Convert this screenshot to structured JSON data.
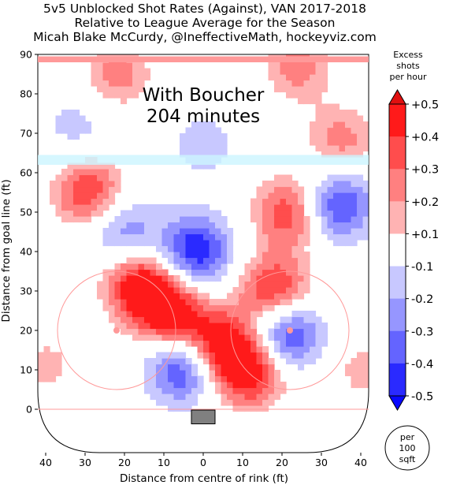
{
  "chart_data": {
    "type": "heatmap",
    "title_lines": [
      "5v5 Unblocked Shot Rates (Against), VAN 2017-2018",
      "Relative to League Average for the Season",
      "Micah Blake McCurdy, @IneffectiveMath, hockeyviz.com"
    ],
    "annotation_lines": [
      "With Boucher",
      "204 minutes"
    ],
    "xlabel": "Distance from centre of rink (ft)",
    "ylabel": "Distance from goal line (ft)",
    "xlim": [
      -42,
      42
    ],
    "ylim": [
      -11,
      90
    ],
    "x_ticks": [
      -40,
      -30,
      -20,
      -10,
      0,
      10,
      20,
      30,
      40
    ],
    "x_tick_labels": [
      "40",
      "30",
      "20",
      "10",
      "0",
      "10",
      "20",
      "30",
      "40"
    ],
    "y_ticks": [
      0,
      10,
      20,
      30,
      40,
      50,
      60,
      70,
      80,
      90
    ],
    "y_tick_labels": [
      "0",
      "10",
      "20",
      "30",
      "40",
      "50",
      "60",
      "70",
      "80",
      "90"
    ],
    "colorbar": {
      "title_lines": [
        "Excess",
        "shots",
        "per hour"
      ],
      "tick_labels": [
        "+0.5",
        "+0.4",
        "+0.3",
        "+0.2",
        "+0.1",
        "-0.1",
        "-0.2",
        "-0.3",
        "-0.4",
        "-0.5"
      ],
      "levels": [
        {
          "range": [
            0.4,
            0.5
          ],
          "color": "#ff1a1a"
        },
        {
          "range": [
            0.3,
            0.4
          ],
          "color": "#ff4d4d"
        },
        {
          "range": [
            0.2,
            0.3
          ],
          "color": "#ff8080"
        },
        {
          "range": [
            0.1,
            0.2
          ],
          "color": "#ffb3b3"
        },
        {
          "range": [
            0.0,
            0.1
          ],
          "color": "#ffe6e6"
        },
        {
          "range": [
            -0.1,
            0.1
          ],
          "color": "#ffffff"
        },
        {
          "range": [
            -0.2,
            -0.1
          ],
          "color": "#c8c8ff"
        },
        {
          "range": [
            -0.3,
            -0.2
          ],
          "color": "#9696ff"
        },
        {
          "range": [
            -0.4,
            -0.3
          ],
          "color": "#6464ff"
        },
        {
          "range": [
            -0.5,
            -0.4
          ],
          "color": "#2a2aff"
        }
      ]
    },
    "per_area_label_lines": [
      "per",
      "100",
      "sqft"
    ],
    "hotspots": [
      {
        "x": -22,
        "y": 85,
        "value": 0.25
      },
      {
        "x": 24,
        "y": 87,
        "value": 0.25
      },
      {
        "x": 35,
        "y": 68,
        "value": 0.25
      },
      {
        "x": -29,
        "y": 55,
        "value": 0.4
      },
      {
        "x": 22,
        "y": 50,
        "value": 0.4
      },
      {
        "x": -16,
        "y": 32,
        "value": 0.5
      },
      {
        "x": -8,
        "y": 24,
        "value": 0.5
      },
      {
        "x": 4,
        "y": 16,
        "value": 0.5
      },
      {
        "x": 12,
        "y": 10,
        "value": 0.5
      },
      {
        "x": 18,
        "y": 30,
        "value": 0.45
      },
      {
        "x": -40,
        "y": 11,
        "value": 0.15
      },
      {
        "x": 40,
        "y": 10,
        "value": 0.15
      },
      {
        "x": -5,
        "y": 11,
        "value": -0.5
      },
      {
        "x": 21,
        "y": 19,
        "value": -0.5
      },
      {
        "x": -2,
        "y": 40,
        "value": -0.5
      },
      {
        "x": 34,
        "y": 52,
        "value": -0.45
      },
      {
        "x": -20,
        "y": 45,
        "value": -0.3
      },
      {
        "x": -32,
        "y": 72,
        "value": -0.15
      },
      {
        "x": 0,
        "y": 67,
        "value": -0.15
      }
    ]
  }
}
